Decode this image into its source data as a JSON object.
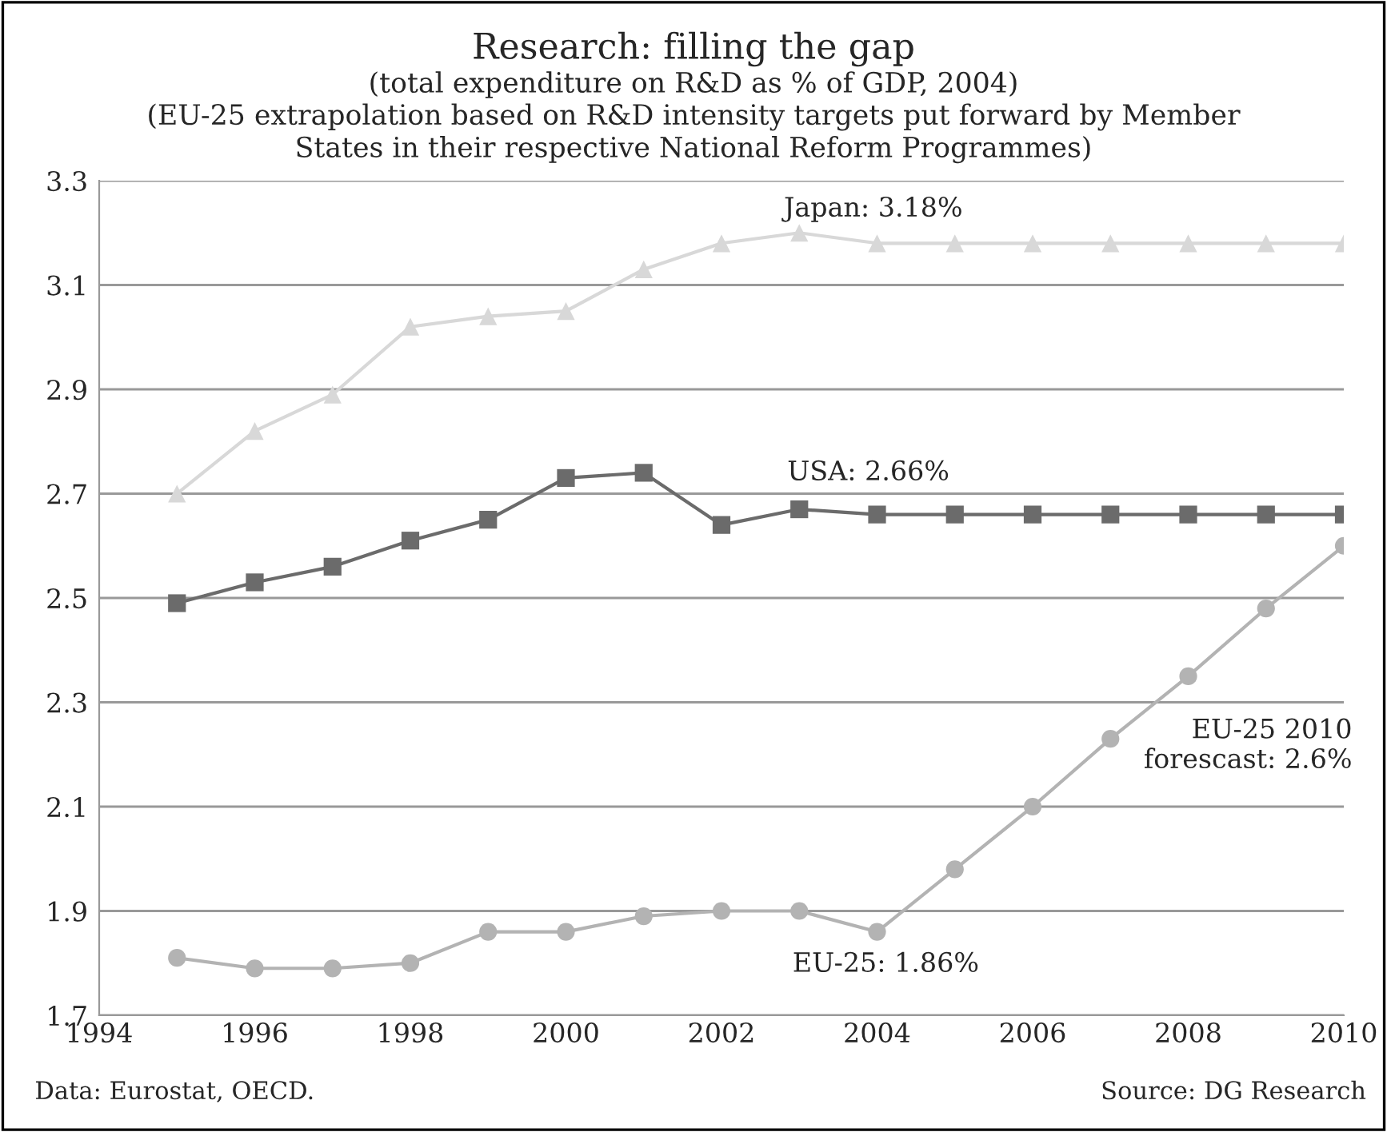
{
  "chart_data": {
    "type": "line",
    "title": "Research: filling the gap",
    "subtitle": "(total expenditure on R&D as % of GDP, 2004)\n(EU-25 extrapolation based on R&D intensity targets put forward by Member\nStates in their respective National Reform Programmes)",
    "x": [
      1995,
      1996,
      1997,
      1998,
      1999,
      2000,
      2001,
      2002,
      2003,
      2004,
      2005,
      2006,
      2007,
      2008,
      2009,
      2010
    ],
    "series": [
      {
        "color": "#d8d8d8",
        "marker": "triangle",
        "values": [
          2.7,
          2.82,
          2.89,
          3.02,
          3.04,
          3.05,
          3.13,
          3.18,
          3.2,
          3.18,
          3.18,
          3.18,
          3.18,
          3.18,
          3.18,
          3.18
        ]
      },
      {
        "color": "#6b6b6b",
        "marker": "square",
        "values": [
          2.49,
          2.53,
          2.56,
          2.61,
          2.65,
          2.73,
          2.74,
          2.64,
          2.67,
          2.66,
          2.66,
          2.66,
          2.66,
          2.66,
          2.66,
          2.66
        ]
      },
      {
        "color": "#b3b3b3",
        "marker": "circle",
        "values": [
          1.81,
          1.79,
          1.79,
          1.8,
          1.86,
          1.86,
          1.89,
          1.9,
          1.9,
          1.86,
          1.98,
          2.1,
          2.23,
          2.35,
          2.48,
          2.6
        ]
      }
    ],
    "xlim": [
      1994,
      2010
    ],
    "xticks": [
      1994,
      1996,
      1998,
      2000,
      2002,
      2004,
      2006,
      2008,
      2010
    ],
    "ylim": [
      1.7,
      3.3
    ],
    "yticks": [
      1.7,
      1.9,
      2.1,
      2.3,
      2.5,
      2.7,
      2.9,
      3.1,
      3.3
    ],
    "grid": "y",
    "legend": false,
    "line_style": "solid",
    "annotations": [
      "Japan: 3.18%",
      "USA: 2.66%",
      "EU-25: 1.86%",
      "EU-25 2010\nforescast: 2.6%",
      "Data: Eurostat, OECD.",
      "Source: DG Research"
    ]
  }
}
